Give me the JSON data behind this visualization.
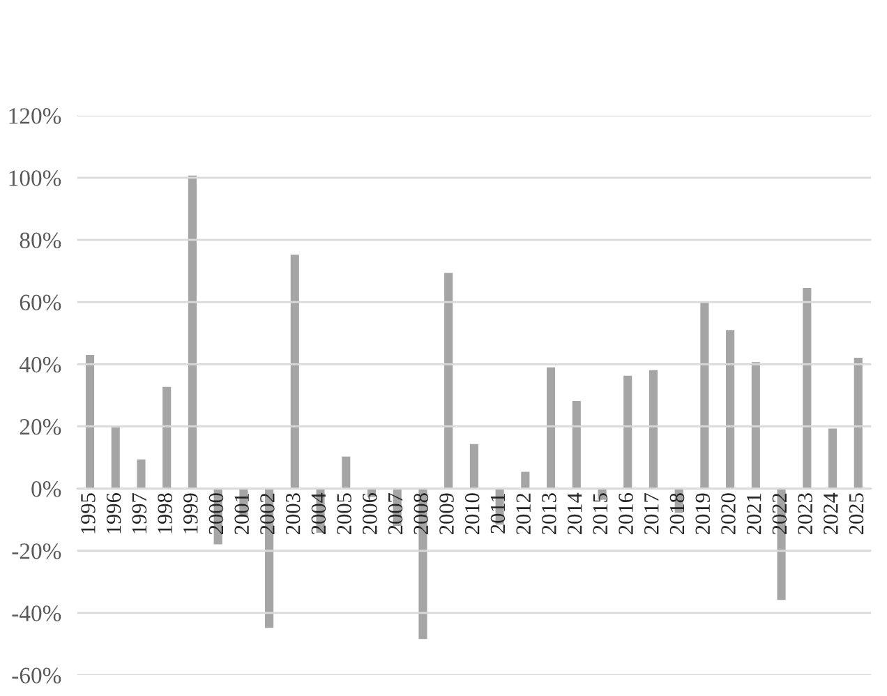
{
  "chart_data": {
    "type": "bar",
    "categories": [
      "1995",
      "1996",
      "1997",
      "1998",
      "1999",
      "2000",
      "2001",
      "2002",
      "2003",
      "2004",
      "2005",
      "2006",
      "2007",
      "2008",
      "2009",
      "2010",
      "2011",
      "2012",
      "2013",
      "2014",
      "2015",
      "2016",
      "2017",
      "2018",
      "2019",
      "2020",
      "2021",
      "2022",
      "2023",
      "2024",
      "2025"
    ],
    "values": [
      43.0,
      19.7,
      9.4,
      32.7,
      100.7,
      -17.9,
      -9.0,
      -44.8,
      75.2,
      -14.2,
      10.3,
      -2.7,
      -12.0,
      -48.4,
      69.4,
      14.3,
      -11.6,
      5.4,
      39.0,
      28.2,
      -3.6,
      36.3,
      38.1,
      -7.8,
      60.0,
      51.0,
      40.7,
      -35.8,
      64.5,
      19.3,
      42.1
    ],
    "color": "#a5a5a5",
    "ylim": [
      -60,
      120
    ],
    "yticks": [
      {
        "value": -60,
        "label": "-60%"
      },
      {
        "value": -40,
        "label": "-40%"
      },
      {
        "value": -20,
        "label": "-20%"
      },
      {
        "value": 0,
        "label": "0%"
      },
      {
        "value": 20,
        "label": "20%"
      },
      {
        "value": 40,
        "label": "40%"
      },
      {
        "value": 60,
        "label": "60%"
      },
      {
        "value": 80,
        "label": "80%"
      },
      {
        "value": 100,
        "label": "100%"
      },
      {
        "value": 120,
        "label": "120%"
      }
    ],
    "grid": "y"
  }
}
